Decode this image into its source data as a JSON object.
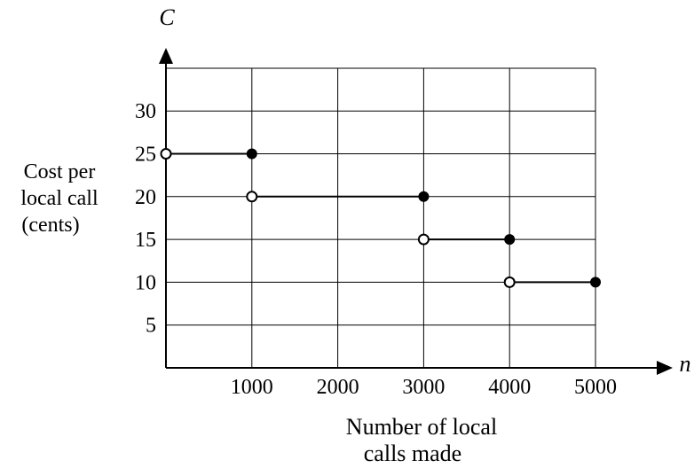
{
  "chart_data": {
    "type": "step",
    "title": "",
    "xlabel": [
      "Number of local",
      "calls made"
    ],
    "ylabel": [
      "Cost per",
      "local call",
      "(cents)"
    ],
    "x_axis_symbol": "n",
    "y_axis_symbol": "C",
    "xlim": [
      0,
      5000
    ],
    "ylim": [
      0,
      35
    ],
    "x_ticks": [
      1000,
      2000,
      3000,
      4000,
      5000
    ],
    "y_ticks": [
      5,
      10,
      15,
      20,
      25,
      30
    ],
    "grid": true,
    "segments": [
      {
        "x_start": 0,
        "x_end": 1000,
        "y": 25,
        "start_closed": false,
        "end_closed": true
      },
      {
        "x_start": 1000,
        "x_end": 3000,
        "y": 20,
        "start_closed": false,
        "end_closed": true
      },
      {
        "x_start": 3000,
        "x_end": 4000,
        "y": 15,
        "start_closed": false,
        "end_closed": true
      },
      {
        "x_start": 4000,
        "x_end": 5000,
        "y": 10,
        "start_closed": false,
        "end_closed": true
      }
    ]
  }
}
